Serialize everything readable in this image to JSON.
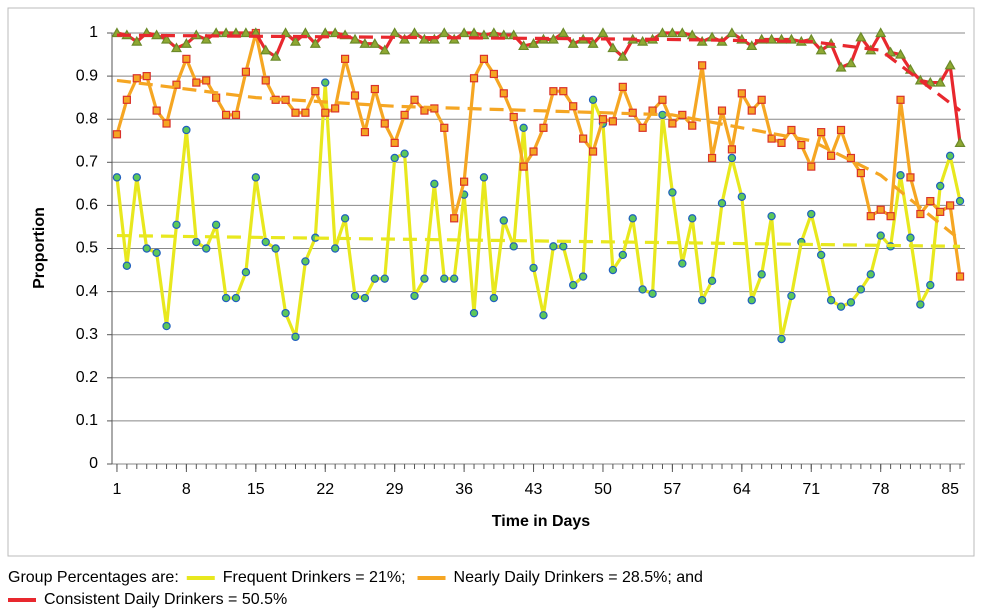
{
  "chart_data": {
    "type": "line",
    "ylabel": "Proportion",
    "xlabel": "Time in Days",
    "legend_title": "Group Percentages are:",
    "x": [
      1,
      2,
      3,
      4,
      5,
      6,
      7,
      8,
      9,
      10,
      11,
      12,
      13,
      14,
      15,
      16,
      17,
      18,
      19,
      20,
      21,
      22,
      23,
      24,
      25,
      26,
      27,
      28,
      29,
      30,
      31,
      32,
      33,
      34,
      35,
      36,
      37,
      38,
      39,
      40,
      41,
      42,
      43,
      44,
      45,
      46,
      47,
      48,
      49,
      50,
      51,
      52,
      53,
      54,
      55,
      56,
      57,
      58,
      59,
      60,
      61,
      62,
      63,
      64,
      65,
      66,
      67,
      68,
      69,
      70,
      71,
      72,
      73,
      74,
      75,
      76,
      77,
      78,
      79,
      80,
      81,
      82,
      83,
      84,
      85,
      86
    ],
    "xlim": [
      0.5,
      86.5
    ],
    "xticks": [
      1,
      8,
      15,
      22,
      29,
      36,
      43,
      50,
      57,
      64,
      71,
      78,
      85
    ],
    "ylim": [
      0,
      1
    ],
    "yticks": [
      0,
      0.1,
      0.2,
      0.3,
      0.4,
      0.5,
      0.6,
      0.7,
      0.8,
      0.9,
      1
    ],
    "grid": true,
    "series": [
      {
        "name": "Frequent Drinkers = 21%;",
        "color": "#e8e81e",
        "marker": "circle",
        "marker_fill": "#5cc85a",
        "marker_edge": "#1f5fbf",
        "values": [
          0.665,
          0.46,
          0.665,
          0.5,
          0.49,
          0.32,
          0.555,
          0.775,
          0.515,
          0.5,
          0.555,
          0.385,
          0.385,
          0.445,
          0.665,
          0.515,
          0.5,
          0.35,
          0.295,
          0.47,
          0.525,
          0.885,
          0.5,
          0.57,
          0.39,
          0.385,
          0.43,
          0.43,
          0.71,
          0.72,
          0.39,
          0.43,
          0.65,
          0.43,
          0.43,
          0.625,
          0.35,
          0.665,
          0.385,
          0.565,
          0.505,
          0.78,
          0.455,
          0.345,
          0.505,
          0.505,
          0.415,
          0.435,
          0.845,
          0.79,
          0.45,
          0.485,
          0.57,
          0.405,
          0.395,
          0.81,
          0.63,
          0.465,
          0.57,
          0.38,
          0.425,
          0.605,
          0.71,
          0.62,
          0.38,
          0.44,
          0.575,
          0.29,
          0.39,
          0.515,
          0.58,
          0.485,
          0.38,
          0.365,
          0.375,
          0.405,
          0.44,
          0.53,
          0.505,
          0.67,
          0.525,
          0.37,
          0.415,
          0.645,
          0.715,
          0.61
        ]
      },
      {
        "name": "Nearly Daily Drinkers = 28.5%; and",
        "color": "#f5a623",
        "marker": "square",
        "marker_fill": "#f5a623",
        "marker_edge": "#d9322a",
        "values": [
          0.765,
          0.845,
          0.895,
          0.9,
          0.82,
          0.79,
          0.88,
          0.94,
          0.885,
          0.89,
          0.85,
          0.81,
          0.81,
          0.91,
          1.0,
          0.89,
          0.845,
          0.845,
          0.815,
          0.815,
          0.865,
          0.815,
          0.825,
          0.94,
          0.855,
          0.77,
          0.87,
          0.79,
          0.745,
          0.81,
          0.845,
          0.82,
          0.825,
          0.78,
          0.57,
          0.655,
          0.895,
          0.94,
          0.905,
          0.86,
          0.805,
          0.69,
          0.725,
          0.78,
          0.865,
          0.865,
          0.83,
          0.755,
          0.725,
          0.8,
          0.795,
          0.875,
          0.815,
          0.78,
          0.82,
          0.845,
          0.79,
          0.81,
          0.785,
          0.925,
          0.71,
          0.82,
          0.73,
          0.86,
          0.82,
          0.845,
          0.755,
          0.745,
          0.775,
          0.74,
          0.69,
          0.77,
          0.715,
          0.775,
          0.71,
          0.675,
          0.575,
          0.59,
          0.575,
          0.845,
          0.665,
          0.58,
          0.61,
          0.585,
          0.6,
          0.435
        ]
      },
      {
        "name": "Consistent Daily Drinkers = 50.5%",
        "color": "#e8282e",
        "marker": "triangle",
        "marker_fill": "#8fa832",
        "marker_edge": "#6b8a2a",
        "values": [
          1,
          0.995,
          0.98,
          1,
          0.995,
          0.985,
          0.965,
          0.975,
          0.995,
          0.985,
          1,
          1,
          1,
          1,
          1,
          0.96,
          0.945,
          1,
          0.98,
          1,
          0.975,
          1,
          1,
          0.995,
          0.985,
          0.975,
          0.975,
          0.96,
          1,
          0.985,
          1,
          0.985,
          0.985,
          1,
          0.985,
          1,
          1,
          0.995,
          1,
          0.995,
          0.995,
          0.97,
          0.975,
          0.985,
          0.985,
          1,
          0.975,
          0.985,
          0.975,
          1,
          0.965,
          0.945,
          0.985,
          0.98,
          0.985,
          1,
          1,
          1,
          0.995,
          0.98,
          0.99,
          0.98,
          1,
          0.985,
          0.97,
          0.985,
          0.985,
          0.985,
          0.985,
          0.98,
          0.985,
          0.96,
          0.975,
          0.92,
          0.93,
          0.99,
          0.96,
          1,
          0.955,
          0.95,
          0.915,
          0.89,
          0.885,
          0.885,
          0.925,
          0.745
        ]
      }
    ],
    "trendlines": [
      {
        "color": "#e8e81e",
        "dash": true,
        "x": [
          1,
          86
        ],
        "values": [
          0.53,
          0.505
        ]
      },
      {
        "color": "#f5a623",
        "dash": true,
        "x": [
          1,
          15,
          29,
          43,
          57,
          71,
          78,
          86
        ],
        "values": [
          0.89,
          0.85,
          0.83,
          0.82,
          0.81,
          0.75,
          0.67,
          0.52
        ]
      },
      {
        "color": "#e8282e",
        "dash": true,
        "x": [
          1,
          29,
          57,
          71,
          78,
          86
        ],
        "values": [
          0.995,
          0.99,
          0.985,
          0.98,
          0.96,
          0.82
        ]
      }
    ]
  }
}
